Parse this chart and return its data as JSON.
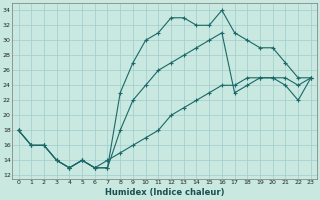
{
  "xlabel": "Humidex (Indice chaleur)",
  "bg_color": "#c8e8e0",
  "line_color": "#1a6868",
  "grid_color": "#9ecece",
  "xlim": [
    -0.5,
    23.5
  ],
  "ylim": [
    11.5,
    35
  ],
  "yticks": [
    12,
    14,
    16,
    18,
    20,
    22,
    24,
    26,
    28,
    30,
    32,
    34
  ],
  "xticks": [
    0,
    1,
    2,
    3,
    4,
    5,
    6,
    7,
    8,
    9,
    10,
    11,
    12,
    13,
    14,
    15,
    16,
    17,
    18,
    19,
    20,
    21,
    22,
    23
  ],
  "line1_x": [
    0,
    1,
    2,
    3,
    4,
    5,
    6,
    7,
    8,
    9,
    10,
    11,
    12,
    13,
    14,
    15,
    16,
    17,
    18,
    19,
    20,
    21,
    22,
    23
  ],
  "line1_y": [
    18,
    16,
    16,
    14,
    13,
    14,
    13,
    13,
    23,
    27,
    30,
    31,
    33,
    33,
    32,
    32,
    34,
    31,
    30,
    29,
    29,
    27,
    25,
    25
  ],
  "line2_x": [
    0,
    1,
    2,
    3,
    4,
    5,
    6,
    7,
    8,
    9,
    10,
    11,
    12,
    13,
    14,
    15,
    16,
    17,
    18,
    19,
    20,
    21,
    22,
    23
  ],
  "line2_y": [
    18,
    16,
    16,
    14,
    13,
    14,
    13,
    14,
    15,
    16,
    17,
    18,
    20,
    21,
    22,
    23,
    24,
    24,
    25,
    25,
    25,
    25,
    24,
    25
  ],
  "line3_x": [
    0,
    1,
    2,
    3,
    4,
    5,
    6,
    7,
    8,
    9,
    10,
    11,
    12,
    13,
    14,
    15,
    16,
    17,
    18,
    19,
    20,
    21,
    22,
    23
  ],
  "line3_y": [
    18,
    16,
    16,
    14,
    13,
    14,
    13,
    13,
    18,
    22,
    24,
    26,
    27,
    28,
    29,
    30,
    31,
    23,
    24,
    25,
    25,
    24,
    22,
    25
  ]
}
